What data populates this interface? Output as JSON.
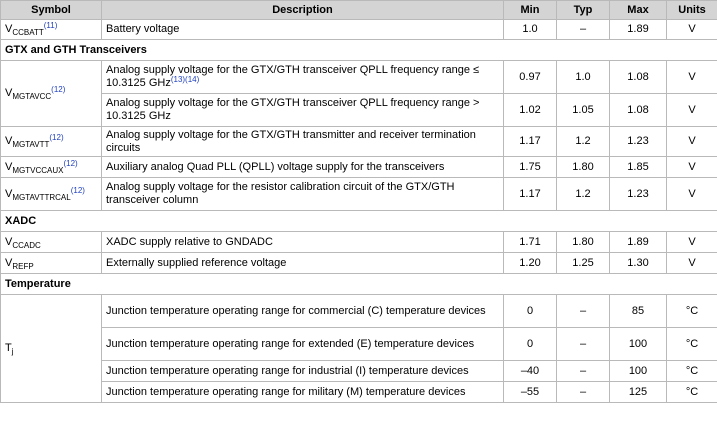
{
  "headers": {
    "symbol": "Symbol",
    "description": "Description",
    "min": "Min",
    "typ": "Typ",
    "max": "Max",
    "units": "Units"
  },
  "rows": {
    "vccbatt": {
      "sym": "V",
      "sub": "CCBATT",
      "note": "(11)",
      "desc": "Battery voltage",
      "min": "1.0",
      "typ": "–",
      "max": "1.89",
      "unit": "V"
    },
    "sec_gtx": "GTX and GTH Transceivers",
    "mgtavcc": {
      "sym": "V",
      "sub": "MGTAVCC",
      "note": "(12)",
      "a": {
        "desc": "Analog supply voltage for the GTX/GTH transceiver QPLL frequency range ≤ 10.3125 GHz",
        "note": "(13)(14)",
        "min": "0.97",
        "typ": "1.0",
        "max": "1.08",
        "unit": "V"
      },
      "b": {
        "desc": "Analog supply voltage for the GTX/GTH transceiver QPLL frequency range > 10.3125 GHz",
        "min": "1.02",
        "typ": "1.05",
        "max": "1.08",
        "unit": "V"
      }
    },
    "mgtavtt": {
      "sym": "V",
      "sub": "MGTAVTT",
      "note": "(12)",
      "desc": "Analog supply voltage for the GTX/GTH transmitter and receiver termination circuits",
      "min": "1.17",
      "typ": "1.2",
      "max": "1.23",
      "unit": "V"
    },
    "mgtvccaux": {
      "sym": "V",
      "sub": "MGTVCCAUX",
      "note": "(12)",
      "desc": "Auxiliary analog Quad PLL (QPLL) voltage supply for the transceivers",
      "min": "1.75",
      "typ": "1.80",
      "max": "1.85",
      "unit": "V"
    },
    "mgtavttrcal": {
      "sym": "V",
      "sub": "MGTAVTTRCAL",
      "note": "(12)",
      "desc": "Analog supply voltage for the resistor calibration circuit of the GTX/GTH transceiver column",
      "min": "1.17",
      "typ": "1.2",
      "max": "1.23",
      "unit": "V"
    },
    "sec_xadc": "XADC",
    "ccadc": {
      "sym": "V",
      "sub": "CCADC",
      "desc": "XADC supply relative to GNDADC",
      "min": "1.71",
      "typ": "1.80",
      "max": "1.89",
      "unit": "V"
    },
    "refp": {
      "sym": "V",
      "sub": "REFP",
      "desc": "Externally supplied reference voltage",
      "min": "1.20",
      "typ": "1.25",
      "max": "1.30",
      "unit": "V"
    },
    "sec_temp": "Temperature",
    "tj": {
      "sym": "T",
      "sub": "j",
      "c": {
        "desc": "Junction temperature operating range for commercial (C) temperature devices",
        "min": "0",
        "typ": "–",
        "max": "85",
        "unit": "°C"
      },
      "e": {
        "desc": "Junction temperature operating range for extended (E) temperature devices",
        "min": "0",
        "typ": "–",
        "max": "100",
        "unit": "°C"
      },
      "i": {
        "desc": "Junction temperature operating range for industrial (I) temperature devices",
        "min": "–40",
        "typ": "–",
        "max": "100",
        "unit": "°C"
      },
      "m": {
        "desc": "Junction temperature operating range for military (M) temperature devices",
        "min": "–55",
        "typ": "–",
        "max": "125",
        "unit": "°C"
      }
    }
  }
}
